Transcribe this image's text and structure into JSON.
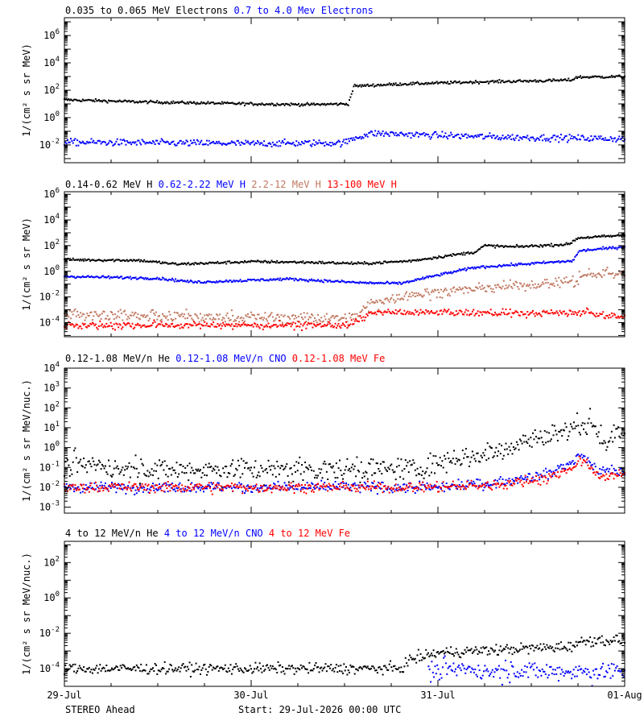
{
  "page": {
    "instrument": "STEREO Ahead",
    "start": "Start: 29-Jul-2026 00:00 UTC"
  },
  "x_axis": {
    "ticks": [
      "29-Jul",
      "30-Jul",
      "31-Jul",
      "01-Aug"
    ]
  },
  "chart_data": [
    {
      "type": "scatter",
      "panel": "electrons",
      "ylabel": "1/(cm² s sr MeV)",
      "ylog": true,
      "ylim_exp": [
        -3.3,
        7.3
      ],
      "ytick_exps": [
        -2,
        0,
        2,
        4,
        6
      ],
      "xlim_days": [
        0,
        3
      ],
      "legend": [
        {
          "label": "0.035 to 0.065 MeV Electrons",
          "color": "#000000"
        },
        {
          "label": "0.7 to 4.0 Mev Electrons",
          "color": "#0000ff"
        }
      ],
      "series": [
        {
          "name": "0.035 to 0.065 MeV Electrons",
          "color": "#000000",
          "scatter": 0.05,
          "spread": 1.0,
          "points": [
            [
              0.0,
              1.3
            ],
            [
              0.4,
              1.15
            ],
            [
              1.0,
              1.0
            ],
            [
              1.3,
              0.95
            ],
            [
              1.52,
              1.0
            ],
            [
              1.53,
              1.4
            ],
            [
              1.55,
              2.3
            ],
            [
              1.8,
              2.45
            ],
            [
              2.2,
              2.6
            ],
            [
              2.6,
              2.7
            ],
            [
              2.72,
              2.75
            ],
            [
              2.74,
              2.95
            ],
            [
              3.0,
              3.0
            ]
          ]
        },
        {
          "name": "0.7 to 4.0 Mev Electrons",
          "color": "#0000ff",
          "scatter": 0.12,
          "spread": 1.0,
          "points": [
            [
              0.0,
              -1.8
            ],
            [
              0.5,
              -1.85
            ],
            [
              1.0,
              -1.9
            ],
            [
              1.5,
              -1.85
            ],
            [
              1.55,
              -1.5
            ],
            [
              1.65,
              -1.15
            ],
            [
              2.0,
              -1.3
            ],
            [
              2.4,
              -1.45
            ],
            [
              3.0,
              -1.55
            ]
          ]
        }
      ]
    },
    {
      "type": "scatter",
      "panel": "protons",
      "ylabel": "1/(cm² s sr MeV)",
      "ylog": true,
      "ylim_exp": [
        -5.1,
        6.2
      ],
      "ytick_exps": [
        -4,
        -2,
        0,
        2,
        4,
        6
      ],
      "xlim_days": [
        0,
        3
      ],
      "legend": [
        {
          "label": "0.14-0.62 MeV H",
          "color": "#000000"
        },
        {
          "label": "0.62-2.22 MeV H",
          "color": "#0000ff"
        },
        {
          "label": "2.2-12 MeV H",
          "color": "#c07860"
        },
        {
          "label": "13-100 MeV H",
          "color": "#ff0000"
        }
      ],
      "series": [
        {
          "name": "0.14-0.62 MeV H",
          "color": "#000000",
          "scatter": 0.05,
          "spread": 1.0,
          "points": [
            [
              0.0,
              0.9
            ],
            [
              0.4,
              0.85
            ],
            [
              0.6,
              0.55
            ],
            [
              1.0,
              0.75
            ],
            [
              1.3,
              0.7
            ],
            [
              1.6,
              0.6
            ],
            [
              1.85,
              0.8
            ],
            [
              2.0,
              1.1
            ],
            [
              2.2,
              1.5
            ],
            [
              2.25,
              2.0
            ],
            [
              2.4,
              1.9
            ],
            [
              2.7,
              2.1
            ],
            [
              2.75,
              2.6
            ],
            [
              3.0,
              2.8
            ]
          ]
        },
        {
          "name": "0.62-2.22 MeV H",
          "color": "#0000ff",
          "scatter": 0.05,
          "spread": 1.0,
          "points": [
            [
              0.0,
              -0.4
            ],
            [
              0.5,
              -0.55
            ],
            [
              0.7,
              -0.85
            ],
            [
              1.2,
              -0.6
            ],
            [
              1.6,
              -0.9
            ],
            [
              1.8,
              -0.95
            ],
            [
              2.0,
              -0.3
            ],
            [
              2.2,
              0.3
            ],
            [
              2.5,
              0.6
            ],
            [
              2.72,
              0.8
            ],
            [
              2.76,
              1.6
            ],
            [
              3.0,
              1.9
            ]
          ]
        },
        {
          "name": "2.2-12 MeV H",
          "color": "#c07860",
          "scatter": 0.18,
          "spread": 2.2,
          "points": [
            [
              0.0,
              -3.3
            ],
            [
              0.5,
              -3.5
            ],
            [
              1.0,
              -3.6
            ],
            [
              1.5,
              -3.7
            ],
            [
              1.56,
              -3.5
            ],
            [
              1.65,
              -2.5
            ],
            [
              1.8,
              -1.9
            ],
            [
              2.1,
              -1.5
            ],
            [
              2.5,
              -1.0
            ],
            [
              2.74,
              -0.8
            ],
            [
              2.78,
              -0.3
            ],
            [
              3.0,
              -0.2
            ]
          ]
        },
        {
          "name": "13-100 MeV H",
          "color": "#ff0000",
          "scatter": 0.12,
          "spread": 1.6,
          "points": [
            [
              0.0,
              -4.2
            ],
            [
              0.5,
              -4.2
            ],
            [
              1.0,
              -4.2
            ],
            [
              1.5,
              -4.2
            ],
            [
              1.56,
              -4.0
            ],
            [
              1.65,
              -3.2
            ],
            [
              2.0,
              -3.2
            ],
            [
              2.5,
              -3.3
            ],
            [
              2.8,
              -3.2
            ],
            [
              3.0,
              -3.6
            ]
          ]
        }
      ]
    },
    {
      "type": "scatter",
      "panel": "ions-low",
      "ylabel": "1/(cm² s sr MeV/nuc.)",
      "ylog": true,
      "ylim_exp": [
        -3.3,
        4.0
      ],
      "ytick_exps": [
        -3,
        -2,
        -1,
        0,
        1,
        2,
        3,
        4
      ],
      "xlim_days": [
        0,
        3
      ],
      "legend": [
        {
          "label": "0.12-1.08 MeV/n He",
          "color": "#000000"
        },
        {
          "label": "0.12-1.08 MeV/n CNO",
          "color": "#0000ff"
        },
        {
          "label": "0.12-1.08 MeV Fe",
          "color": "#ff0000"
        }
      ],
      "series": [
        {
          "name": "0.12-1.08 MeV/n He",
          "color": "#000000",
          "scatter": 0.25,
          "spread": 1.8,
          "points": [
            [
              0.0,
              -0.9
            ],
            [
              0.5,
              -1.1
            ],
            [
              1.0,
              -1.1
            ],
            [
              1.5,
              -1.1
            ],
            [
              1.9,
              -1.0
            ],
            [
              2.1,
              -0.6
            ],
            [
              2.3,
              -0.2
            ],
            [
              2.5,
              0.4
            ],
            [
              2.7,
              0.9
            ],
            [
              2.76,
              1.25
            ],
            [
              2.83,
              1.2
            ],
            [
              2.9,
              0.2
            ],
            [
              3.0,
              0.8
            ]
          ]
        },
        {
          "name": "0.12-1.08 MeV/n CNO",
          "color": "#0000ff",
          "scatter": 0.12,
          "spread": 1.2,
          "points": [
            [
              0.0,
              -2.0
            ],
            [
              1.0,
              -2.0
            ],
            [
              2.0,
              -2.0
            ],
            [
              2.3,
              -1.8
            ],
            [
              2.6,
              -1.3
            ],
            [
              2.78,
              -0.4
            ],
            [
              2.86,
              -1.2
            ],
            [
              3.0,
              -1.2
            ]
          ]
        },
        {
          "name": "0.12-1.08 MeV Fe",
          "color": "#ff0000",
          "scatter": 0.12,
          "spread": 1.2,
          "points": [
            [
              0.0,
              -2.0
            ],
            [
              1.0,
              -2.0
            ],
            [
              2.0,
              -2.0
            ],
            [
              2.3,
              -1.9
            ],
            [
              2.6,
              -1.5
            ],
            [
              2.78,
              -0.7
            ],
            [
              2.86,
              -1.4
            ],
            [
              3.0,
              -1.4
            ]
          ]
        }
      ]
    },
    {
      "type": "scatter",
      "panel": "ions-high",
      "ylabel": "1/(cm² s sr MeV/nuc.)",
      "ylog": true,
      "ylim_exp": [
        -5.0,
        3.2
      ],
      "ytick_exps": [
        -4,
        -2,
        0,
        2
      ],
      "xlim_days": [
        0,
        3
      ],
      "legend": [
        {
          "label": "4 to 12 MeV/n He",
          "color": "#000000"
        },
        {
          "label": "4 to 12 MeV/n CNO",
          "color": "#0000ff"
        },
        {
          "label": "4 to 12 MeV Fe",
          "color": "#ff0000"
        }
      ],
      "series": [
        {
          "name": "4 to 12 MeV/n He",
          "color": "#000000",
          "scatter": 0.15,
          "spread": 1.0,
          "points": [
            [
              0.0,
              -4.0
            ],
            [
              1.0,
              -4.0
            ],
            [
              1.8,
              -4.0
            ],
            [
              1.85,
              -3.5
            ],
            [
              2.0,
              -3.1
            ],
            [
              2.4,
              -2.9
            ],
            [
              2.7,
              -2.75
            ],
            [
              2.8,
              -2.4
            ],
            [
              3.0,
              -2.4
            ]
          ]
        },
        {
          "name": "4 to 12 MeV/n CNO",
          "color": "#0000ff",
          "scatter": 0.25,
          "spread": 1.4,
          "points": [
            [
              1.95,
              -4.1
            ],
            [
              2.4,
              -4.1
            ],
            [
              3.0,
              -4.2
            ]
          ]
        }
      ]
    }
  ]
}
